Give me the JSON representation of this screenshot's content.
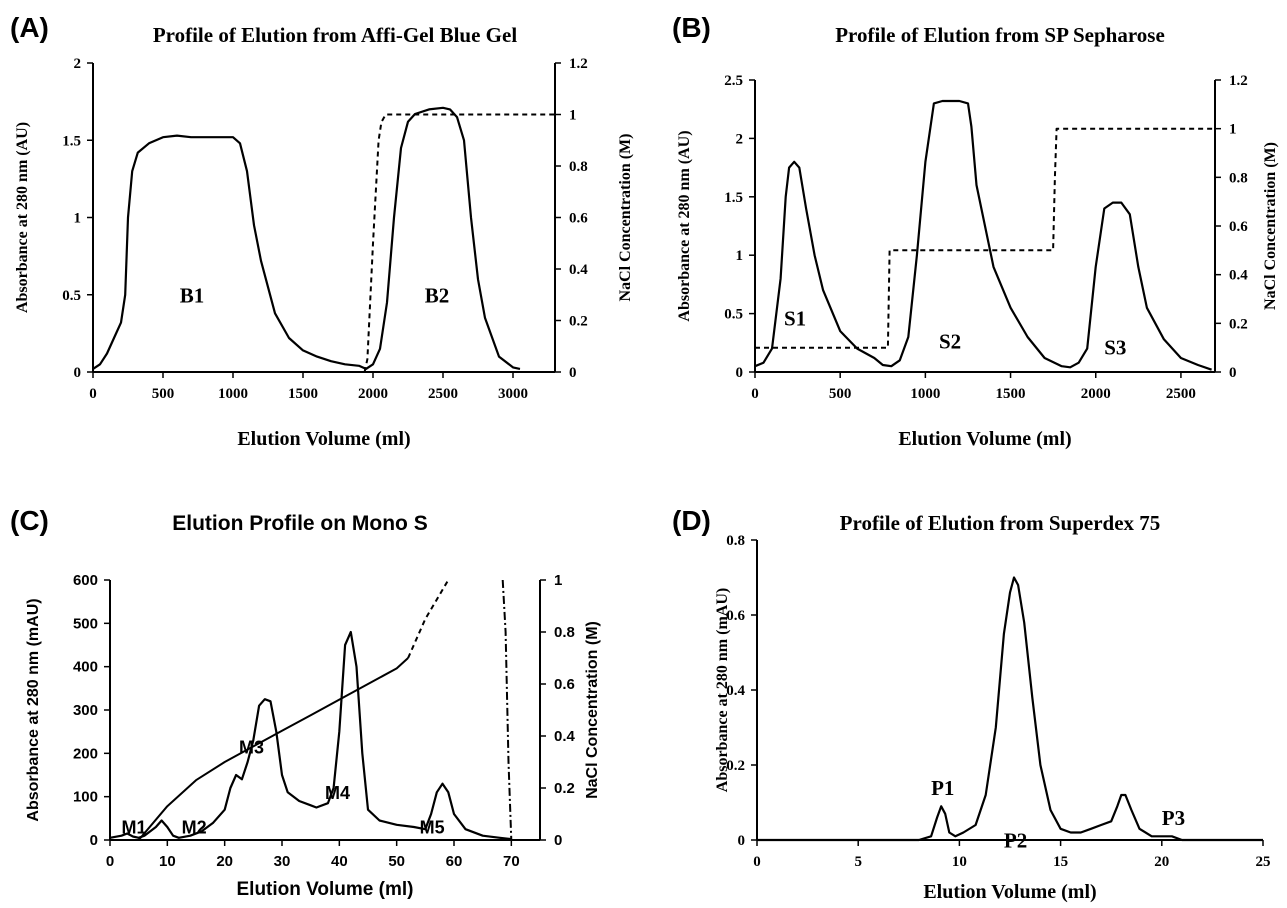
{
  "chart_data": [
    {
      "type": "line",
      "panel_label": "(A)",
      "title": "Profile of Elution from Affi-Gel Blue Gel",
      "xlabel": "Elution Volume (ml)",
      "ylabel": "Absorbance at 280 nm (AU)",
      "y2label": "NaCl Concentration (M)",
      "xlim": [
        0,
        3300
      ],
      "ylim": [
        0,
        2
      ],
      "y2lim": [
        0,
        1.2
      ],
      "x_ticks": [
        "0",
        "500",
        "1000",
        "1500",
        "2000",
        "2500",
        "3000"
      ],
      "y_ticks": [
        "0",
        "0.5",
        "1",
        "1.5",
        "2"
      ],
      "y2_ticks": [
        "0",
        "0.2",
        "0.4",
        "0.6",
        "0.8",
        "1",
        "1.2"
      ],
      "grid": false,
      "series": [
        {
          "axis": "left",
          "style": "solid",
          "x": [
            0,
            50,
            100,
            150,
            200,
            230,
            250,
            280,
            320,
            400,
            500,
            600,
            700,
            800,
            900,
            1000,
            1050,
            1100,
            1150,
            1200,
            1300,
            1400,
            1500,
            1600,
            1700,
            1800,
            1900,
            1950,
            2000,
            2050,
            2100,
            2150,
            2200,
            2250,
            2300,
            2400,
            2500,
            2550,
            2600,
            2650,
            2700,
            2750,
            2800,
            2900,
            3000,
            3050
          ],
          "y": [
            0.02,
            0.05,
            0.12,
            0.22,
            0.32,
            0.5,
            1.0,
            1.3,
            1.42,
            1.48,
            1.52,
            1.53,
            1.52,
            1.52,
            1.52,
            1.52,
            1.48,
            1.3,
            0.95,
            0.72,
            0.38,
            0.22,
            0.14,
            0.1,
            0.07,
            0.05,
            0.04,
            0.02,
            0.05,
            0.15,
            0.45,
            1.0,
            1.45,
            1.62,
            1.67,
            1.7,
            1.71,
            1.7,
            1.65,
            1.5,
            1.0,
            0.6,
            0.35,
            0.1,
            0.03,
            0.02
          ]
        },
        {
          "axis": "right",
          "style": "dashed",
          "x": [
            1940,
            1960,
            2000,
            2040,
            2060,
            2090,
            2500,
            3300
          ],
          "y": [
            0.0,
            0.05,
            0.5,
            0.9,
            0.97,
            1.0,
            1.0,
            1.0
          ]
        }
      ],
      "annotations": [
        {
          "text": "B1",
          "x": 620,
          "y": 0.45
        },
        {
          "text": "B2",
          "x": 2370,
          "y": 0.45
        }
      ]
    },
    {
      "type": "line",
      "panel_label": "(B)",
      "title": "Profile of Elution from SP Sepharose",
      "xlabel": "Elution Volume (ml)",
      "ylabel": "Absorbance at 280 nm (AU)",
      "y2label": "NaCl Concentration (M)",
      "xlim": [
        0,
        2700
      ],
      "ylim": [
        0,
        2.5
      ],
      "y2lim": [
        0,
        1.2
      ],
      "x_ticks": [
        "0",
        "500",
        "1000",
        "1500",
        "2000",
        "2500"
      ],
      "y_ticks": [
        "0",
        "0.5",
        "1",
        "1.5",
        "2",
        "2.5"
      ],
      "y2_ticks": [
        "0",
        "0.2",
        "0.4",
        "0.6",
        "0.8",
        "1",
        "1.2"
      ],
      "grid": false,
      "series": [
        {
          "axis": "left",
          "style": "solid",
          "x": [
            0,
            50,
            100,
            150,
            180,
            200,
            230,
            260,
            300,
            350,
            400,
            500,
            600,
            700,
            750,
            800,
            850,
            900,
            950,
            1000,
            1050,
            1100,
            1200,
            1250,
            1270,
            1300,
            1400,
            1500,
            1600,
            1700,
            1800,
            1850,
            1900,
            1950,
            2000,
            2050,
            2100,
            2150,
            2200,
            2250,
            2300,
            2400,
            2500,
            2600,
            2680
          ],
          "y": [
            0.05,
            0.08,
            0.2,
            0.8,
            1.5,
            1.75,
            1.8,
            1.75,
            1.4,
            1.0,
            0.7,
            0.35,
            0.2,
            0.12,
            0.06,
            0.05,
            0.1,
            0.3,
            1.0,
            1.8,
            2.3,
            2.32,
            2.32,
            2.3,
            2.1,
            1.6,
            0.9,
            0.55,
            0.3,
            0.12,
            0.05,
            0.04,
            0.08,
            0.2,
            0.9,
            1.4,
            1.45,
            1.45,
            1.35,
            0.9,
            0.55,
            0.28,
            0.12,
            0.06,
            0.02
          ]
        },
        {
          "axis": "right",
          "style": "dashed",
          "x": [
            0,
            770,
            780,
            790,
            1750,
            1760,
            1770,
            2700
          ],
          "y": [
            0.1,
            0.1,
            0.1,
            0.5,
            0.5,
            0.8,
            1.0,
            1.0
          ]
        }
      ],
      "annotations": [
        {
          "text": "S1",
          "x": 170,
          "y": 0.4
        },
        {
          "text": "S2",
          "x": 1080,
          "y": 0.2
        },
        {
          "text": "S3",
          "x": 2050,
          "y": 0.15
        }
      ]
    },
    {
      "type": "line",
      "panel_label": "(C)",
      "title": "Elution Profile on Mono S",
      "xlabel": "Elution Volume (ml)",
      "ylabel": "Absorbance at 280 nm (mAU)",
      "y2label": "NaCl Concentration (M)",
      "xlim": [
        0,
        75
      ],
      "ylim": [
        0,
        600
      ],
      "y2lim": [
        0,
        1
      ],
      "x_ticks": [
        "0",
        "10",
        "20",
        "30",
        "40",
        "50",
        "60",
        "70"
      ],
      "y_ticks": [
        "0",
        "100",
        "200",
        "300",
        "400",
        "500",
        "600"
      ],
      "y2_ticks": [
        "0",
        "0.2",
        "0.4",
        "0.6",
        "0.8",
        "1"
      ],
      "grid": false,
      "series": [
        {
          "axis": "left",
          "style": "solid",
          "x": [
            0,
            2,
            3,
            4,
            5,
            6,
            8,
            9,
            10,
            11,
            12,
            14,
            16,
            18,
            20,
            21,
            22,
            23,
            24,
            25,
            26,
            27,
            28,
            29,
            30,
            31,
            33,
            35,
            36,
            38,
            39,
            40,
            41,
            42,
            43,
            44,
            45,
            47,
            50,
            53,
            55,
            56,
            57,
            58,
            59,
            60,
            62,
            65,
            68,
            70
          ],
          "y": [
            5,
            10,
            15,
            8,
            5,
            10,
            30,
            45,
            30,
            10,
            5,
            10,
            20,
            40,
            70,
            120,
            150,
            140,
            180,
            230,
            310,
            325,
            320,
            250,
            150,
            110,
            90,
            80,
            75,
            85,
            120,
            250,
            450,
            480,
            400,
            200,
            70,
            45,
            35,
            30,
            25,
            60,
            110,
            130,
            110,
            60,
            25,
            10,
            5,
            2
          ]
        },
        {
          "axis": "right",
          "style": "solid",
          "x": [
            5,
            10,
            15,
            20,
            25,
            30,
            35,
            40,
            45,
            50,
            52
          ],
          "y": [
            0.0,
            0.13,
            0.23,
            0.3,
            0.36,
            0.42,
            0.48,
            0.54,
            0.6,
            0.66,
            0.7
          ]
        },
        {
          "axis": "right",
          "style": "dashed",
          "x": [
            52,
            55,
            59
          ],
          "y": [
            0.7,
            0.85,
            1.0
          ]
        },
        {
          "axis": "right",
          "style": "dashdot",
          "x": [
            68.5,
            69,
            69.5,
            70
          ],
          "y": [
            1.0,
            0.8,
            0.3,
            0.0
          ]
        }
      ],
      "annotations": [
        {
          "text": "M1",
          "x": 2,
          "y": 15
        },
        {
          "text": "M2",
          "x": 12.5,
          "y": 15
        },
        {
          "text": "M3",
          "x": 22.5,
          "y": 200
        },
        {
          "text": "M4",
          "x": 37.5,
          "y": 95
        },
        {
          "text": "M5",
          "x": 54,
          "y": 15
        }
      ]
    },
    {
      "type": "line",
      "panel_label": "(D)",
      "title": "Profile of Elution from Superdex 75",
      "xlabel": "Elution Volume (ml)",
      "ylabel": "Absorbance at 280 nm (mAU)",
      "xlim": [
        0,
        25
      ],
      "ylim": [
        0,
        0.8
      ],
      "x_ticks": [
        "0",
        "5",
        "10",
        "15",
        "20",
        "25"
      ],
      "y_ticks": [
        "0",
        "0.2",
        "0.4",
        "0.6",
        "0.8"
      ],
      "grid": false,
      "series": [
        {
          "axis": "left",
          "style": "solid",
          "x": [
            0,
            8,
            8.6,
            8.9,
            9.1,
            9.3,
            9.5,
            9.8,
            10.2,
            10.8,
            11.3,
            11.8,
            12.2,
            12.5,
            12.7,
            12.9,
            13.2,
            13.6,
            14.0,
            14.5,
            15.0,
            15.5,
            16.0,
            16.5,
            17.0,
            17.5,
            17.8,
            18.0,
            18.2,
            18.5,
            18.9,
            19.5,
            20.0,
            20.5,
            21.0,
            22.0,
            23.0,
            25.0
          ],
          "y": [
            0,
            0,
            0.01,
            0.06,
            0.09,
            0.07,
            0.02,
            0.01,
            0.02,
            0.04,
            0.12,
            0.3,
            0.55,
            0.66,
            0.7,
            0.68,
            0.58,
            0.38,
            0.2,
            0.08,
            0.03,
            0.02,
            0.02,
            0.03,
            0.04,
            0.05,
            0.09,
            0.12,
            0.12,
            0.08,
            0.03,
            0.01,
            0.01,
            0.01,
            0.0,
            0.0,
            0.0,
            0.0
          ]
        }
      ],
      "annotations": [
        {
          "text": "P1",
          "x": 8.6,
          "y": 0.12
        },
        {
          "text": "P2",
          "x": 12.2,
          "y": -0.02
        },
        {
          "text": "P3",
          "x": 20.0,
          "y": 0.04
        }
      ]
    }
  ]
}
